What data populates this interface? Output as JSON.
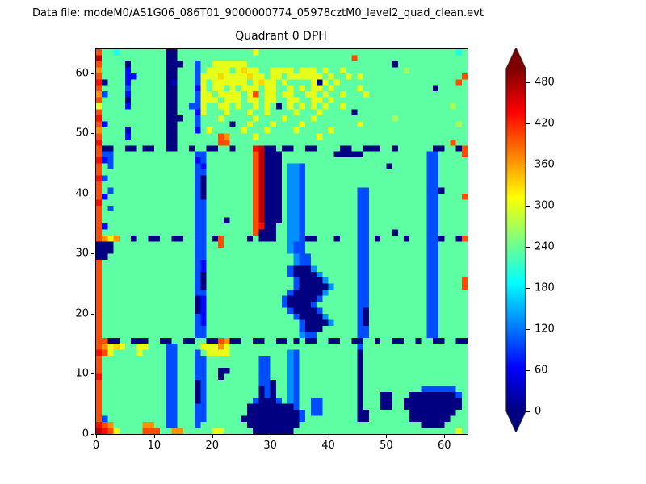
{
  "header": {
    "data_file_label": "Data file: modeM0/AS1G06_086T01_9000000774_05978cztM0_level2_quad_clean.evt"
  },
  "chart_data": {
    "type": "heatmap",
    "title": "Quadrant 0 DPH",
    "xlabel": "",
    "ylabel": "",
    "xlim": [
      0,
      64
    ],
    "ylim": [
      0,
      64
    ],
    "xticks": [
      0,
      10,
      20,
      30,
      40,
      50,
      60
    ],
    "yticks": [
      0,
      10,
      20,
      30,
      40,
      50,
      60
    ],
    "grid_size": [
      64,
      64
    ],
    "colormap": "jet",
    "colorbar": {
      "vmin": 0,
      "vmax": 500,
      "ticks": [
        0,
        60,
        120,
        180,
        240,
        300,
        360,
        420,
        480
      ],
      "extend": "both"
    },
    "level_chars": "0123456789abcdef",
    "value_levels": [
      0,
      33,
      67,
      100,
      133,
      167,
      200,
      233,
      267,
      300,
      333,
      367,
      400,
      433,
      467,
      500
    ],
    "rows_top_to_bottom": [
      [
        "c7767777",
        "77770077",
        "77777777",
        "77797777",
        "77777777",
        "77777777",
        "77777777",
        "77777767"
      ],
      [
        "e7777777",
        "77770077",
        "77777777",
        "77777777",
        "77777777",
        "7777c777",
        "77777777",
        "77777777"
      ],
      [
        "c7777077",
        "77770007",
        "73779999",
        "99777777",
        "77777777",
        "77777777",
        "77707777",
        "77777777"
      ],
      [
        "b7777277",
        "77770077",
        "73799997",
        "9a997799",
        "99799979",
        "77977777",
        "77777877",
        "77777777"
      ],
      [
        "c7777227",
        "77770077",
        "73999a99",
        "99a99799",
        "79999997",
        "97797977",
        "77777777",
        "7777777c"
      ],
      [
        "d0777277",
        "77770177",
        "73979999",
        "9979a997",
        "97777909",
        "79777777",
        "77777777",
        "777777c7"
      ],
      [
        "c7777377",
        "77770077",
        "72979979",
        "79997997",
        "79797997",
        "97777977",
        "77777777",
        "77077777"
      ],
      [
        "b3777277",
        "77770077",
        "73997999",
        "979c7997",
        "99779979",
        "77977797",
        "77777777",
        "77777777"
      ],
      [
        "c7777077",
        "77770077",
        "73999799",
        "97997997",
        "79977997",
        "97777777",
        "77777777",
        "77777777"
      ],
      [
        "97777277",
        "77770077",
        "33977997",
        "97797970",
        "79797979",
        "77977777",
        "77777777",
        "77777877"
      ],
      [
        "c7777777",
        "77770077",
        "72977797",
        "77977977",
        "77977797",
        "77770777",
        "77777777",
        "77777777"
      ],
      [
        "d7777777",
        "77770007",
        "73777977",
        "77797777",
        "97777977",
        "77777777",
        "77787777",
        "77777777"
      ],
      [
        "c2777777",
        "77770077",
        "73777770",
        "77977797",
        "77797777",
        "77777977",
        "77777777",
        "77777787"
      ],
      [
        "b7777177",
        "77770077",
        "72797777",
        "79777977",
        "77977777",
        "97777777",
        "77777777",
        "77777777"
      ],
      [
        "c7777277",
        "77770077",
        "77777cb7",
        "77797777",
        "77777797",
        "77777777",
        "77777777",
        "77777777"
      ],
      [
        "d7777777",
        "77770077",
        "77777cc7",
        "77777777",
        "77777777",
        "77777777",
        "77777777",
        "77777c77"
      ],
      [
        "c0077007",
        "00770077",
        "07700770",
        "777de007",
        "00770077",
        "77007700",
        "07707777",
        "7700770c"
      ],
      [
        "c3377777",
        "77777777",
        "73377777",
        "777ce000",
        "77777777",
        "70000077",
        "77777777",
        "7337777c"
      ],
      [
        "d2377777",
        "77777777",
        "72377777",
        "777ce000",
        "77777777",
        "77777777",
        "77777777",
        "73377777"
      ],
      [
        "c7377777",
        "77777777",
        "73277777",
        "777ce000",
        "74437777",
        "77777777",
        "77077777",
        "73377777"
      ],
      [
        "c7777777",
        "77777777",
        "73377777",
        "777ce000",
        "74437777",
        "77777777",
        "77777777",
        "73377777"
      ],
      [
        "d3777777",
        "77777777",
        "73077777",
        "777ce000",
        "74437777",
        "77777777",
        "77777777",
        "73377777"
      ],
      [
        "c7777777",
        "77777777",
        "73077777",
        "777ce000",
        "74437777",
        "77777777",
        "77777777",
        "73377777"
      ],
      [
        "c7377777",
        "77777777",
        "73077777",
        "777ce000",
        "74437777",
        "77777337",
        "77777777",
        "73307777"
      ],
      [
        "c2777777",
        "77777777",
        "73077777",
        "777ce000",
        "74437777",
        "77777337",
        "77777777",
        "7337777c"
      ],
      [
        "d7777777",
        "77777777",
        "73377777",
        "777ce000",
        "74437777",
        "77777337",
        "77777777",
        "73377777"
      ],
      [
        "c7377777",
        "77777777",
        "73377777",
        "777ce000",
        "74437777",
        "77777337",
        "77777777",
        "73377777"
      ],
      [
        "c7777777",
        "77777777",
        "73377777",
        "777ce000",
        "74437777",
        "77777337",
        "77777777",
        "73377777"
      ],
      [
        "c7777777",
        "77777777",
        "73377707",
        "777ce000",
        "74437777",
        "77777337",
        "77777777",
        "73377777"
      ],
      [
        "c2777777",
        "77777777",
        "73377777",
        "777cd007",
        "74437777",
        "77777337",
        "77777777",
        "73377777"
      ],
      [
        "c7777777",
        "77777777",
        "73377777",
        "777c0007",
        "74437777",
        "77777337",
        "77707777",
        "73377777"
      ],
      [
        "cb9b7707",
        "70077007",
        "73370c77",
        "77070007",
        "74430077",
        "70777337",
        "07777077",
        "7330770c"
      ],
      [
        "00077777",
        "77777777",
        "73377c77",
        "77777777",
        "74337777",
        "77777337",
        "77777777",
        "73377777"
      ],
      [
        "00077777",
        "77777777",
        "73377777",
        "77777777",
        "74337777",
        "77777337",
        "77777777",
        "73377777"
      ],
      [
        "00777777",
        "77777777",
        "73377777",
        "77777777",
        "77433777",
        "77777337",
        "77777777",
        "73377777"
      ],
      [
        "c7777777",
        "77777777",
        "73277777",
        "77777777",
        "77433777",
        "77777337",
        "77777777",
        "73377777"
      ],
      [
        "c7777777",
        "77777777",
        "73277777",
        "77777777",
        "73000477",
        "77777337",
        "77777777",
        "73377777"
      ],
      [
        "c7777777",
        "77777777",
        "73077777",
        "77777777",
        "73000047",
        "77777337",
        "77777777",
        "73377777"
      ],
      [
        "c7777777",
        "77777777",
        "73077777",
        "77777777",
        "77300004",
        "77777337",
        "77777777",
        "7337777c"
      ],
      [
        "c7777777",
        "77777777",
        "73077777",
        "77777777",
        "77300000",
        "47777337",
        "77777777",
        "7337777c"
      ],
      [
        "c7777777",
        "77777777",
        "73377777",
        "77777777",
        "73000004",
        "77777337",
        "77777777",
        "73377777"
      ],
      [
        "c7777777",
        "77777777",
        "70277777",
        "77777777",
        "30000037",
        "77777337",
        "77777777",
        "73377777"
      ],
      [
        "c7777777",
        "77777777",
        "70277777",
        "77777777",
        "30000377",
        "77777337",
        "77777777",
        "73377777"
      ],
      [
        "c7777777",
        "77777777",
        "70277777",
        "77777777",
        "73000037",
        "77777307",
        "77777777",
        "73377777"
      ],
      [
        "c7777777",
        "77777777",
        "73277777",
        "77777777",
        "77300004",
        "77777307",
        "77777777",
        "73377777"
      ],
      [
        "c7777777",
        "77777777",
        "73277777",
        "77777777",
        "77730000",
        "47777307",
        "77777777",
        "73377777"
      ],
      [
        "c7777777",
        "77777777",
        "73377777",
        "77777777",
        "77730007",
        "77777337",
        "77777777",
        "73377777"
      ],
      [
        "c7777777",
        "77777777",
        "73377777",
        "77777777",
        "77743377",
        "77777337",
        "77777777",
        "73377777"
      ],
      [
        "cc007700",
        "07700770",
        "07700cb0",
        "07700770",
        "07070077",
        "00770077",
        "07700770",
        "77007700"
      ],
      [
        "cb9a9779",
        "97773377",
        "77999b97",
        "77777777",
        "77777777",
        "77777377",
        "77777777",
        "77777777"
      ],
      [
        "dc977779",
        "77773377",
        "73799997",
        "77777777",
        "74377777",
        "77777077",
        "77777777",
        "77777777"
      ],
      [
        "c7777777",
        "77773377",
        "73377777",
        "77773377",
        "74377777",
        "77777077",
        "77777777",
        "77777777"
      ],
      [
        "c7777777",
        "77773377",
        "73377777",
        "77773377",
        "74377777",
        "77777077",
        "77777777",
        "77777777"
      ],
      [
        "c7777777",
        "77773377",
        "73377007",
        "77773377",
        "74377777",
        "77777077",
        "77777777",
        "77777777"
      ],
      [
        "d7777777",
        "77773377",
        "73377077",
        "77773377",
        "74377777",
        "77777077",
        "77777777",
        "77777777"
      ],
      [
        "c7777777",
        "77773377",
        "70377777",
        "77773307",
        "74377777",
        "77777077",
        "77777777",
        "77777777"
      ],
      [
        "c7777777",
        "77773377",
        "70377777",
        "77770307",
        "74377777",
        "77777077",
        "77777777",
        "33333377"
      ],
      [
        "c7777777",
        "77773377",
        "70377777",
        "77770307",
        "74377777",
        "77777077",
        "70077700",
        "00000037"
      ],
      [
        "c7777777",
        "77773377",
        "70377777",
        "77730003",
        "74377337",
        "77777077",
        "70077000",
        "00000007"
      ],
      [
        "c7777777",
        "77773377",
        "73377777",
        "77000000",
        "00377337",
        "77777077",
        "70077000",
        "00000007"
      ],
      [
        "c7777777",
        "77773377",
        "73377777",
        "77000000",
        "00037337",
        "77777007",
        "77777700",
        "00000077"
      ],
      [
        "c3777777",
        "77773377",
        "73377777",
        "70000000",
        "00037777",
        "77777007",
        "77777700",
        "00000777"
      ],
      [
        "dcb77777",
        "bb773377",
        "73777777",
        "77000000",
        "00077777",
        "77777777",
        "77777777",
        "00007777"
      ],
      [
        "edc97777",
        "ccc77bb7",
        "77779977",
        "77700000",
        "00777777",
        "77777777",
        "77777777",
        "77777797"
      ]
    ]
  }
}
